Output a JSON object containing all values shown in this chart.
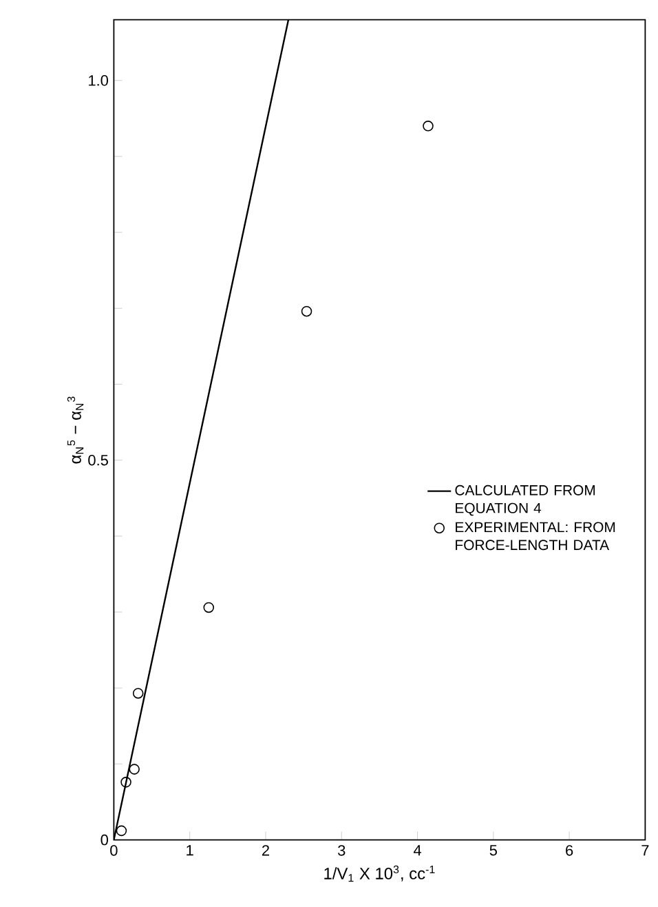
{
  "chart_data": {
    "type": "scatter",
    "xlabel": "1/V$_{1}$ X 10$^{3}$, cc$^{-1}$",
    "ylabel": "α$_{N}$$^{5}$ − α$_{N}$$^{3}$",
    "xlim": [
      0,
      7
    ],
    "ylim": [
      0,
      1.08
    ],
    "xticks": [
      0,
      1,
      2,
      3,
      4,
      5,
      6,
      7
    ],
    "yticks": [
      0,
      {
        "value": 0.1,
        "label": null
      },
      {
        "value": 0.2,
        "label": null
      },
      {
        "value": 0.3,
        "label": null
      },
      {
        "value": 0.4,
        "label": null
      },
      {
        "value": 0.5,
        "label": "0.5"
      },
      {
        "value": 0.6,
        "label": null
      },
      {
        "value": 0.7,
        "label": null
      },
      {
        "value": 0.8,
        "label": null
      },
      {
        "value": 0.9,
        "label": null
      },
      {
        "value": 1.0,
        "label": "1.0"
      }
    ],
    "grid": false,
    "legend": "right",
    "series": [
      {
        "name": "CALCULATED FROM EQUATION 4",
        "type": "line",
        "color": "#000000",
        "x": [
          0,
          2.3
        ],
        "values": [
          0,
          1.08
        ],
        "marker": "none"
      },
      {
        "name": "EXPERIMENTAL: FROM FORCE-LENGTH DATA",
        "color": "#000000",
        "marker": "circle",
        "x": [
          0.1,
          0.16,
          0.27,
          0.32,
          1.25,
          2.54,
          4.14
        ],
        "values": [
          0.012,
          0.076,
          0.093,
          0.193,
          0.306,
          0.696,
          0.94
        ]
      }
    ]
  }
}
